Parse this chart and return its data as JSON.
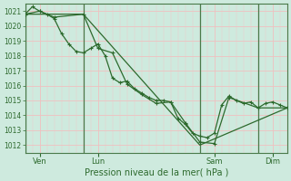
{
  "background_color": "#ceeade",
  "grid_color": "#b8d8c8",
  "line_color": "#2d6a2d",
  "marker_color": "#2d6a2d",
  "xlabel": "Pression niveau de la mer( hPa )",
  "ylim": [
    1011.5,
    1021.5
  ],
  "yticks": [
    1012,
    1013,
    1014,
    1015,
    1016,
    1017,
    1018,
    1019,
    1020,
    1021
  ],
  "xlim": [
    0,
    216
  ],
  "x_vline_positions": [
    0,
    48,
    144,
    192
  ],
  "x_tick_positions": [
    12,
    60,
    156,
    204
  ],
  "x_tick_labels": [
    "Ven",
    "Lun",
    "Sam",
    "Dim"
  ],
  "series1_x": [
    0,
    6,
    12,
    18,
    24,
    30,
    36,
    42,
    48,
    54,
    60,
    66,
    72,
    78,
    84,
    90,
    96,
    102,
    108,
    114,
    120,
    126,
    132,
    138,
    144,
    150,
    156,
    162,
    168,
    174,
    180,
    186,
    192,
    198,
    204,
    210,
    216
  ],
  "series1_y": [
    1020.8,
    1021.3,
    1021.0,
    1020.8,
    1020.5,
    1019.5,
    1018.8,
    1018.3,
    1018.2,
    1018.5,
    1018.8,
    1018.0,
    1016.5,
    1016.2,
    1016.3,
    1015.8,
    1015.5,
    1015.2,
    1015.0,
    1015.0,
    1014.9,
    1013.8,
    1013.4,
    1012.8,
    1012.6,
    1012.5,
    1012.8,
    1014.7,
    1015.3,
    1015.0,
    1014.8,
    1014.9,
    1014.5,
    1014.8,
    1014.9,
    1014.7,
    1014.5
  ],
  "series2_x": [
    0,
    12,
    24,
    48,
    60,
    72,
    84,
    96,
    108,
    120,
    132,
    144,
    156,
    168,
    192,
    216
  ],
  "series2_y": [
    1020.8,
    1021.0,
    1020.6,
    1020.8,
    1018.5,
    1018.2,
    1016.1,
    1015.4,
    1014.8,
    1014.9,
    1013.5,
    1012.2,
    1012.1,
    1015.2,
    1014.5,
    1014.5
  ],
  "series3_x": [
    0,
    48,
    144,
    216
  ],
  "series3_y": [
    1020.8,
    1020.8,
    1012.0,
    1014.5
  ]
}
